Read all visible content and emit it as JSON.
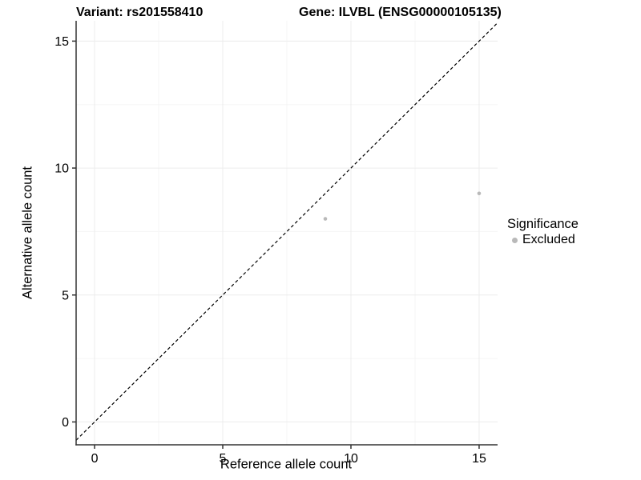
{
  "titles": {
    "left": "Variant: rs201558410",
    "right": "Gene: ILVBL (ENSG00000105135)"
  },
  "chart_data": {
    "type": "scatter",
    "title": "Variant: rs201558410 | Gene: ILVBL (ENSG00000105135)",
    "xlabel": "Reference allele count",
    "ylabel": "Alternative allele count",
    "xlim": [
      -0.72,
      15.72
    ],
    "ylim": [
      -0.9,
      15.8
    ],
    "x_ticks": [
      0,
      5,
      10,
      15
    ],
    "y_ticks": [
      0,
      5,
      10,
      15
    ],
    "x_minor_ticks": [
      2.5,
      7.5,
      12.5
    ],
    "y_minor_ticks": [
      2.5,
      7.5,
      12.5
    ],
    "grid": "on",
    "reference_line": {
      "equation": "y = x",
      "style": "dashed",
      "color": "#000000"
    },
    "series": [
      {
        "name": "Excluded",
        "color": "#b9b9b9",
        "points": [
          {
            "x": 9,
            "y": 8
          },
          {
            "x": 15,
            "y": 9
          }
        ]
      }
    ],
    "legend": {
      "title": "Significance",
      "position": "right",
      "items": [
        {
          "label": "Excluded",
          "color": "#b9b9b9"
        }
      ]
    },
    "colors": {
      "background": "#ffffff",
      "axis": "#333333",
      "major_grid": "#ececec",
      "minor_grid": "#f5f5f5",
      "text": "#000000"
    }
  }
}
